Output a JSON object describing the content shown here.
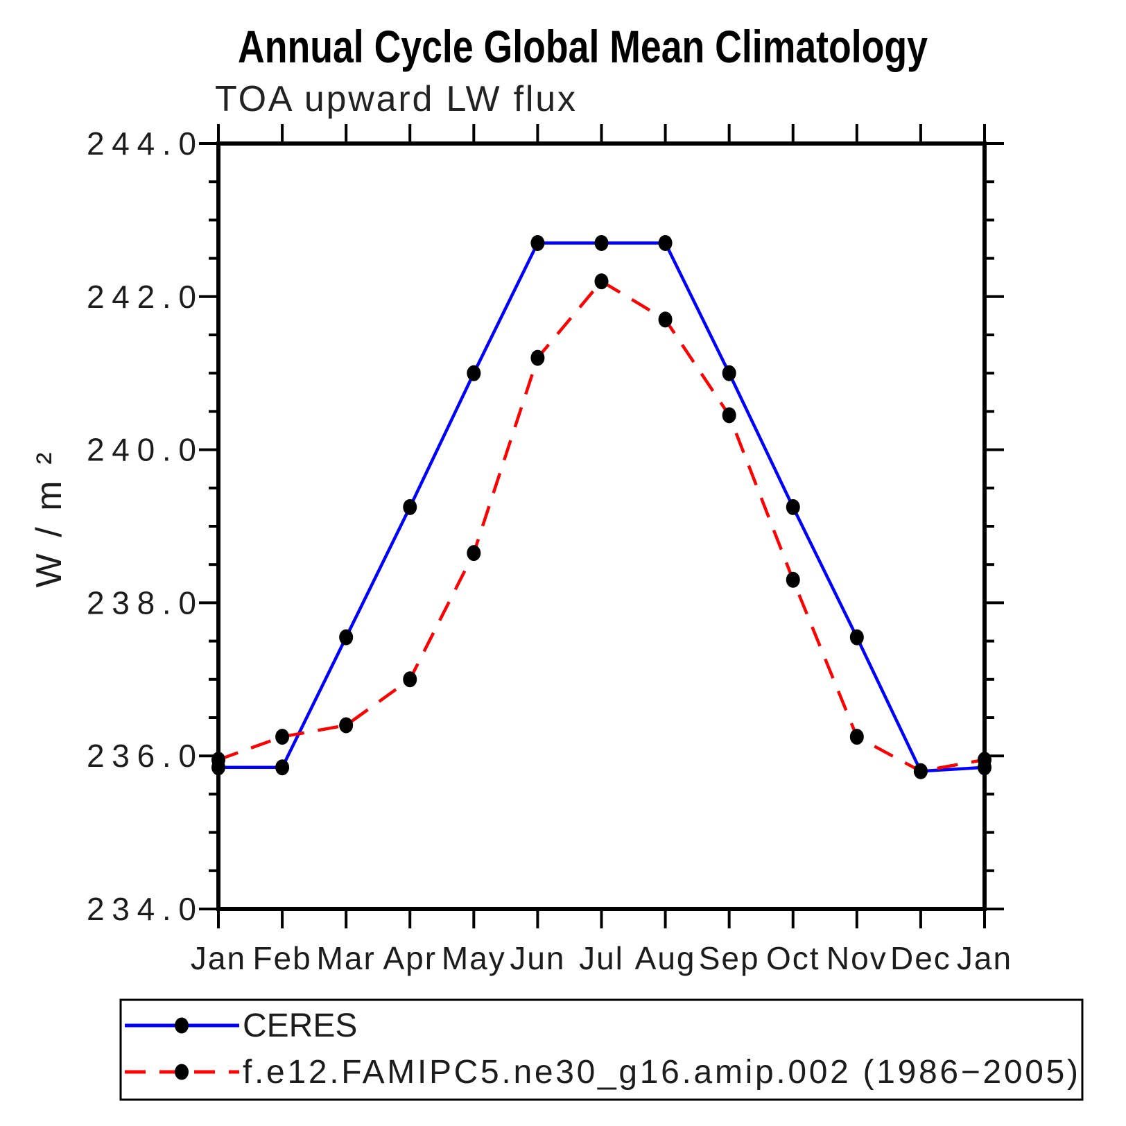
{
  "title": "Annual Cycle Global Mean Climatology",
  "subtitle": "TOA upward LW flux",
  "chart_data": {
    "type": "line",
    "title": "Annual Cycle Global Mean Climatology",
    "subtitle": "TOA upward LW flux",
    "xlabel": "",
    "ylabel": "W/m²",
    "categories": [
      "Jan",
      "Feb",
      "Mar",
      "Apr",
      "May",
      "Jun",
      "Jul",
      "Aug",
      "Sep",
      "Oct",
      "Nov",
      "Dec",
      "Jan"
    ],
    "ylim": [
      234.0,
      244.0
    ],
    "ytick_major_step": 2.0,
    "ytick_minor_step": 0.5,
    "ytick_labels": [
      "234.0",
      "236.0",
      "238.0",
      "240.0",
      "242.0",
      "244.0"
    ],
    "grid": false,
    "legend_position": "bottom-left-box",
    "marker_color": "#000000",
    "series": [
      {
        "name": "CERES",
        "color": "#0000ff",
        "style": "solid",
        "marker": "filled-black-dot",
        "values": [
          235.85,
          235.85,
          237.55,
          239.25,
          241.0,
          242.7,
          242.7,
          242.7,
          241.0,
          239.25,
          237.55,
          235.8,
          235.85
        ]
      },
      {
        "name": "f.e12.FAMIPC5.ne30_g16.amip.002 (1986−2005)",
        "color": "#ff0000",
        "style": "dashed",
        "marker": "filled-black-dot",
        "values": [
          235.95,
          236.25,
          236.4,
          237.0,
          238.65,
          241.2,
          242.2,
          241.7,
          240.45,
          238.3,
          236.25,
          235.8,
          235.95
        ]
      }
    ]
  }
}
